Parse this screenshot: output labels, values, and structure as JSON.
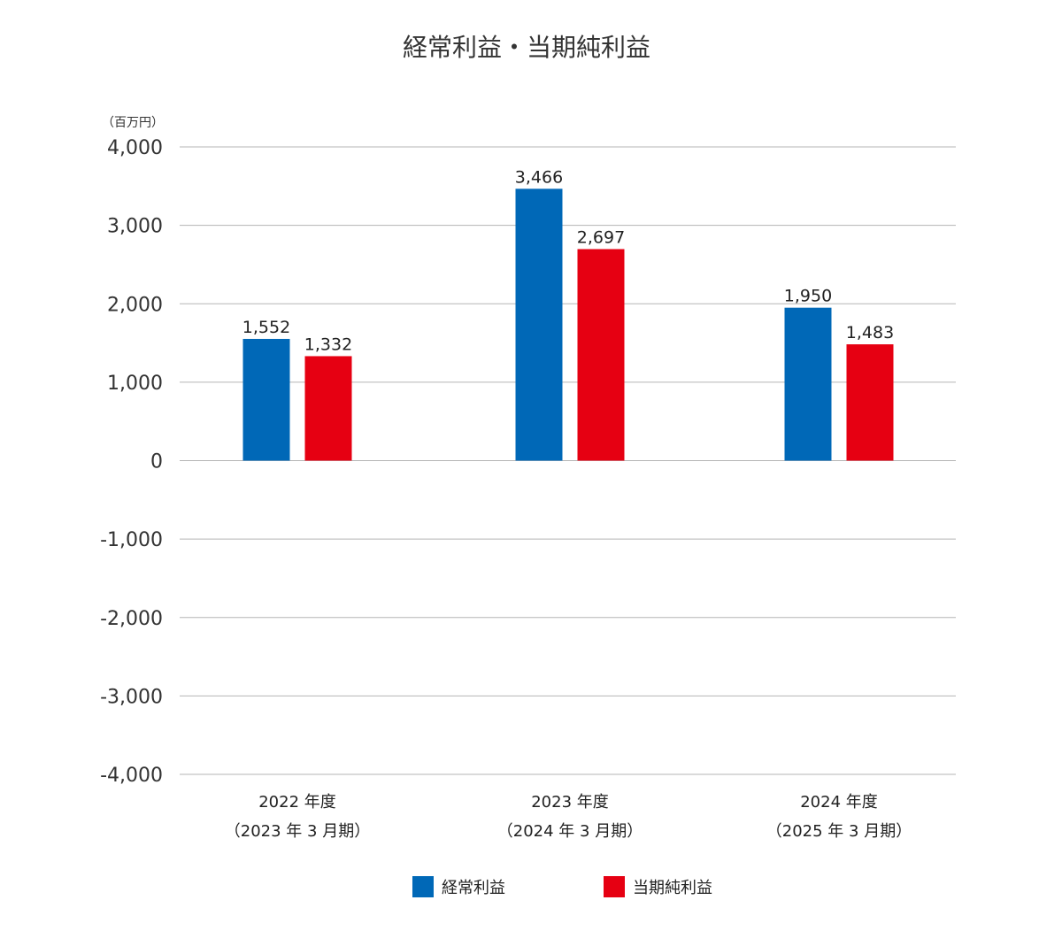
{
  "chart_data": {
    "type": "bar",
    "title": "経常利益・当期純利益",
    "unit_label": "（百万円）",
    "categories": [
      {
        "line1": "2022 年度",
        "line2": "（2023 年 3 月期）"
      },
      {
        "line1": "2023 年度",
        "line2": "（2024 年 3 月期）"
      },
      {
        "line1": "2024 年度",
        "line2": "（2025 年 3 月期）"
      }
    ],
    "series": [
      {
        "name": "経常利益",
        "color": "#0068b7",
        "values": [
          1552,
          3466,
          1950
        ],
        "labels": [
          "1,552",
          "3,466",
          "1,950"
        ]
      },
      {
        "name": "当期純利益",
        "color": "#e60012",
        "values": [
          1332,
          2697,
          1483
        ],
        "labels": [
          "1,332",
          "2,697",
          "1,483"
        ]
      }
    ],
    "ylim": [
      -4000,
      4000
    ],
    "yticks": [
      4000,
      3000,
      2000,
      1000,
      0,
      -1000,
      -2000,
      -3000,
      -4000
    ],
    "ytick_labels": [
      "4,000",
      "3,000",
      "2,000",
      "1,000",
      "0",
      "-1,000",
      "-2,000",
      "-3,000",
      "-4,000"
    ],
    "grid": true,
    "legend_position": "bottom-center"
  }
}
